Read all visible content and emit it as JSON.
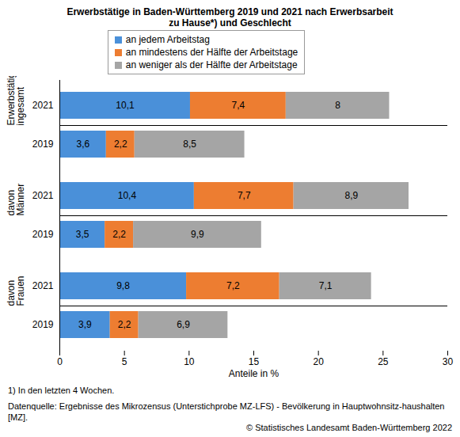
{
  "chart_data": {
    "type": "bar",
    "orientation": "horizontal",
    "stacked": true,
    "data_labels": true,
    "grid": false,
    "legend": "top",
    "title": "Erwerbstätige in Baden-Württemberg 2019 und 2021 nach Erwerbsarbeit zu Hause*) und Geschlecht",
    "groups": [
      {
        "name": "Erwerbstätige ingesamt",
        "categories": [
          "2021",
          "2019"
        ]
      },
      {
        "name": "davon Männer",
        "categories": [
          "2021",
          "2019"
        ]
      },
      {
        "name": "davon Frauen",
        "categories": [
          "2021",
          "2019"
        ]
      }
    ],
    "series": [
      {
        "name": "an jedem Arbeitstag",
        "color": "#4a90d9",
        "values": [
          10.1,
          3.6,
          10.4,
          3.5,
          9.8,
          3.9
        ],
        "value_labels": [
          "10,1",
          "3,6",
          "10,4",
          "3,5",
          "9,8",
          "3,9"
        ]
      },
      {
        "name": "an mindestens der Hälfte der Arbeitstage",
        "color": "#ed7d31",
        "values": [
          7.4,
          2.2,
          7.7,
          2.2,
          7.2,
          2.2
        ],
        "value_labels": [
          "7,4",
          "2,2",
          "7,7",
          "2,2",
          "7,2",
          "2,2"
        ]
      },
      {
        "name": "an weniger als der Hälfte der Arbeitstage",
        "color": "#a5a5a5",
        "values": [
          8,
          8.5,
          8.9,
          9.9,
          7.1,
          6.9
        ],
        "value_labels": [
          "8",
          "8,5",
          "8,9",
          "9,9",
          "7,1",
          "6,9"
        ]
      }
    ],
    "xlabel": "Anteile in %",
    "xlim": [
      0,
      30
    ],
    "xticks": [
      0,
      5,
      10,
      15,
      20,
      25,
      30
    ],
    "footnote": "1) In den letzten 4 Wochen.",
    "source": "Datenquelle: Ergebnisse des Mikrozensus (Unterstichprobe MZ-LFS) - Bevölkerung in Hauptwohnsitz-haushalten [MZ].",
    "copyright": "© Statistisches Landesamt Baden-Württemberg 2022"
  }
}
